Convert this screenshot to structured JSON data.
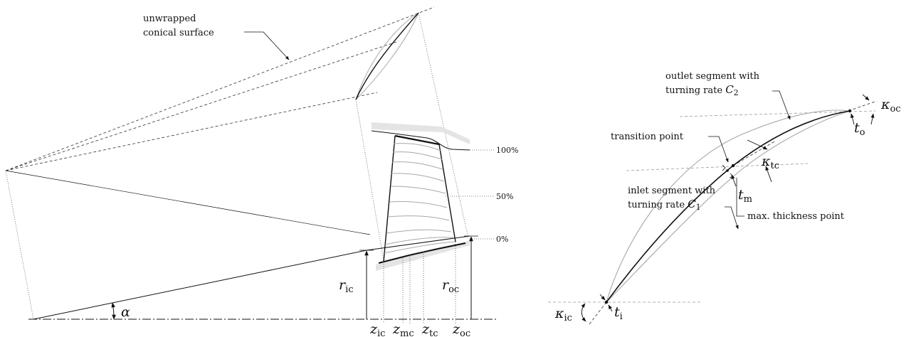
{
  "left_diagram": {
    "surface_label_line1": "unwrapped",
    "surface_label_line2": "conical surface",
    "span_labels": [
      "100%",
      "50%",
      "0%"
    ],
    "r_ic": {
      "base": "r",
      "sub": "ic"
    },
    "r_oc": {
      "base": "r",
      "sub": "oc"
    },
    "alpha": "α",
    "z_ic": {
      "base": "z",
      "sub": "ic"
    },
    "z_mc": {
      "base": "z",
      "sub": "mc"
    },
    "z_tc": {
      "base": "z",
      "sub": "tc"
    },
    "z_oc": {
      "base": "z",
      "sub": "oc"
    }
  },
  "right_diagram": {
    "outlet_line1": "outlet segment with",
    "outlet_line2_prefix": "turning rate ",
    "outlet_C": {
      "base": "C",
      "sub": "2"
    },
    "transition_label": "transition point",
    "inlet_line1": "inlet segment with",
    "inlet_line2_prefix": "turning rate ",
    "inlet_C": {
      "base": "C",
      "sub": "1"
    },
    "max_thickness_label": "max. thickness point",
    "kappa_oc": {
      "base": "κ",
      "sub": "oc"
    },
    "kappa_tc": {
      "base": "κ",
      "sub": "tc"
    },
    "kappa_ic": {
      "base": "κ",
      "sub": "ic"
    },
    "t_o": {
      "base": "t",
      "sub": "o"
    },
    "t_m": {
      "base": "t",
      "sub": "m"
    },
    "t_i": {
      "base": "t",
      "sub": "i"
    }
  }
}
